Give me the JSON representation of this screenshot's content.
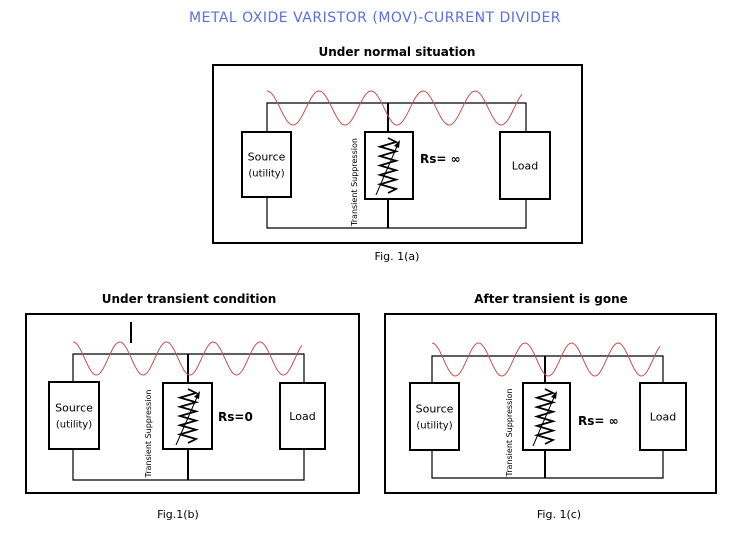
{
  "title": "METAL OXIDE VARISTOR (MOV)-CURRENT DIVIDER",
  "colors": {
    "title": "#5a6ee6",
    "wave": "#c8504d",
    "lines": "#000000"
  },
  "panels": [
    {
      "heading": "Under normal situation",
      "caption": "Fig. 1(a)",
      "source_label": "Source",
      "source_sub": "(utility)",
      "mov_label": "Transient Suppression",
      "rs_label": "Rs= ∞",
      "load_label": "Load",
      "transient_spike": false
    },
    {
      "heading": "Under transient condition",
      "caption": "Fig.1(b)",
      "source_label": "Source",
      "source_sub": "(utility)",
      "mov_label": "Transient Suppression",
      "rs_label": "Rs=0",
      "load_label": "Load",
      "transient_spike": true
    },
    {
      "heading": "After transient is gone",
      "caption": "Fig. 1(c)",
      "source_label": "Source",
      "source_sub": "(utility)",
      "mov_label": "Transient Suppression",
      "rs_label": "Rs= ∞",
      "load_label": "Load",
      "transient_spike": false
    }
  ]
}
